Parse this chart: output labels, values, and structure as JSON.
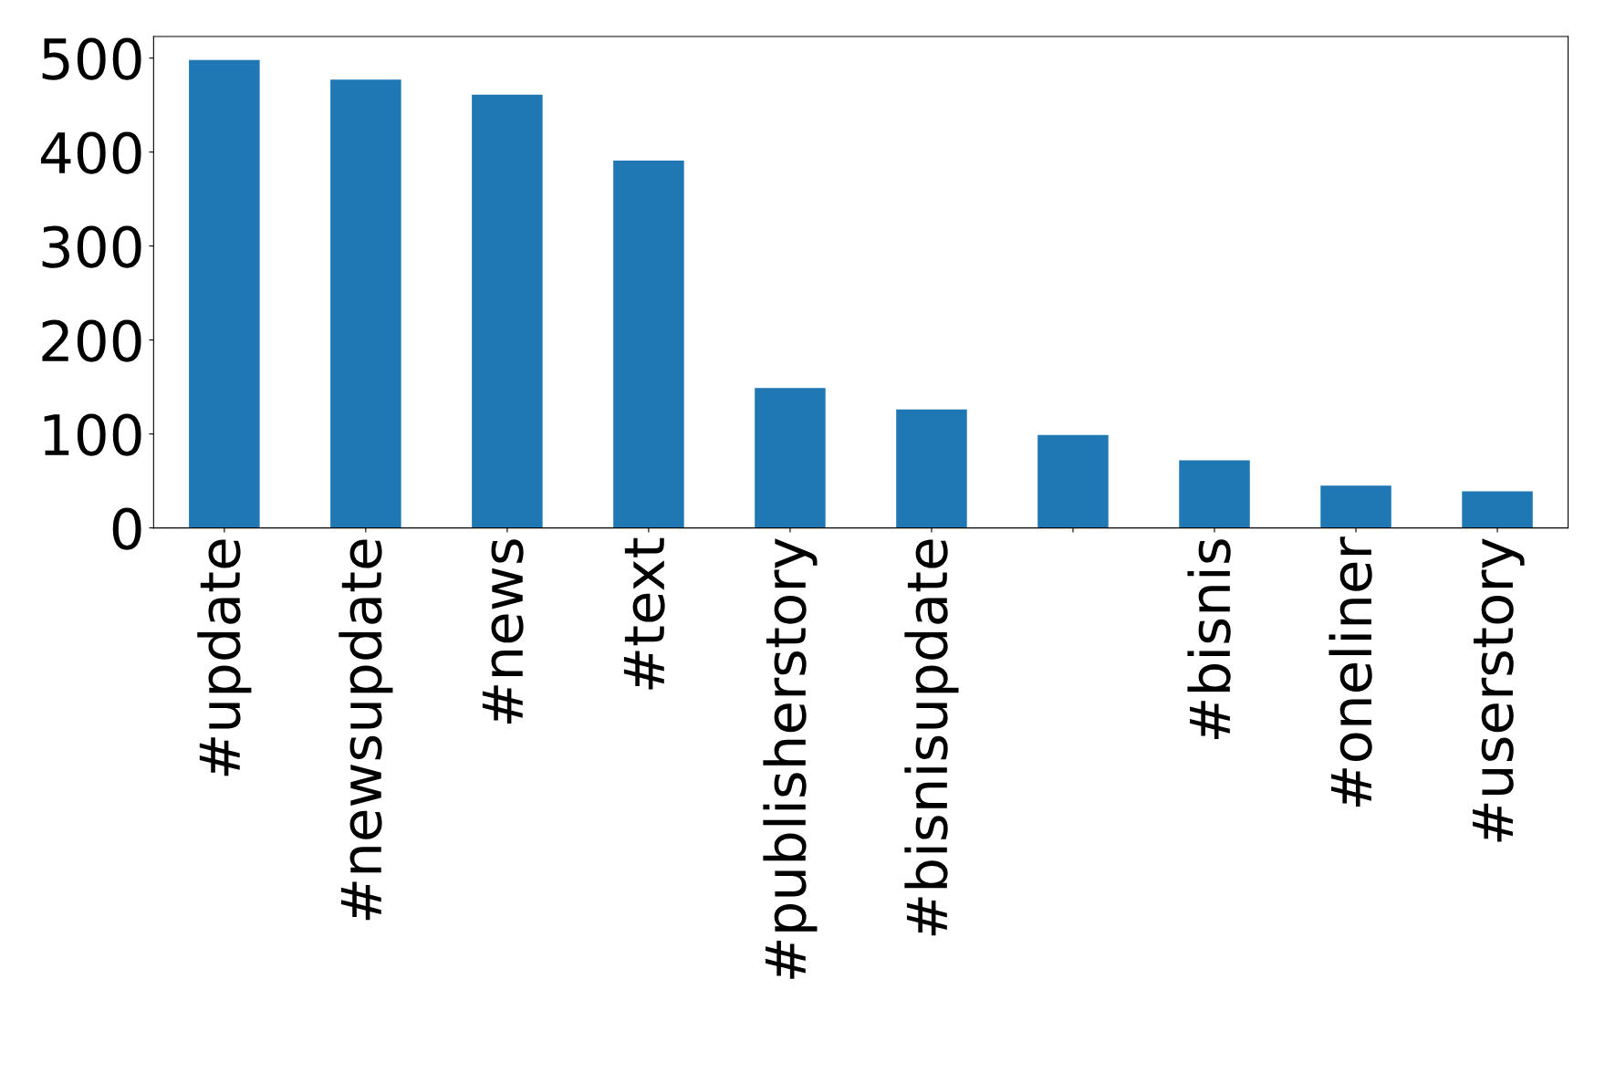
{
  "chart_data": {
    "type": "bar",
    "categories": [
      "#update",
      "#newsupdate",
      "#news",
      "#text",
      "#publisherstory",
      "#bisnisupdate",
      null,
      "#bisnis",
      "#oneliner",
      "#userstory"
    ],
    "values": [
      498,
      477,
      461,
      391,
      149,
      126,
      99,
      72,
      45,
      39
    ],
    "color": "#1f77b4",
    "ylim": [
      0,
      523
    ],
    "yticks": [
      0,
      100,
      200,
      300,
      400,
      500
    ],
    "grid": false,
    "legend": false
  }
}
